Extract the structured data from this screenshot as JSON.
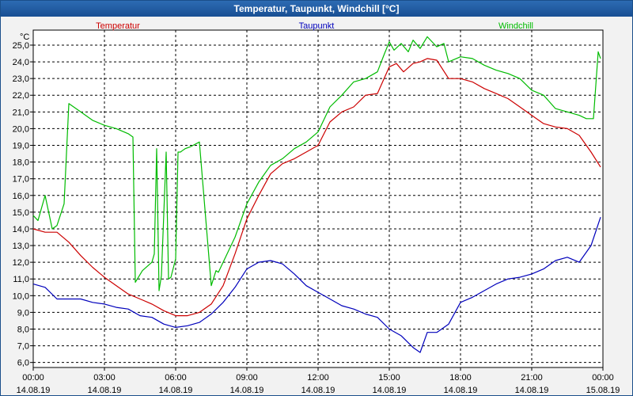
{
  "window": {
    "title": "Temperatur, Taupunkt, Windchill [°C]"
  },
  "chart_data": {
    "type": "line",
    "title": "Temperatur, Taupunkt, Windchill [°C]",
    "ylabel": "°C",
    "xlabel": "",
    "ylim": [
      5.7,
      25.9
    ],
    "xlim": [
      0,
      24
    ],
    "grid": true,
    "yticks": [
      "6,0",
      "7,0",
      "8,0",
      "9,0",
      "10,0",
      "11,0",
      "12,0",
      "13,0",
      "14,0",
      "15,0",
      "16,0",
      "17,0",
      "18,0",
      "19,0",
      "20,0",
      "21,0",
      "22,0",
      "23,0",
      "24,0",
      "25,0"
    ],
    "xticks": [
      {
        "time": "00:00",
        "date": "14.08.19"
      },
      {
        "time": "03:00",
        "date": "14.08.19"
      },
      {
        "time": "06:00",
        "date": "14.08.19"
      },
      {
        "time": "09:00",
        "date": "14.08.19"
      },
      {
        "time": "12:00",
        "date": "14.08.19"
      },
      {
        "time": "15:00",
        "date": "14.08.19"
      },
      {
        "time": "18:00",
        "date": "14.08.19"
      },
      {
        "time": "21:00",
        "date": "14.08.19"
      },
      {
        "time": "00:00",
        "date": "15.08.19"
      }
    ],
    "series": [
      {
        "name": "Temperatur",
        "color": "#cc0000",
        "x": [
          0,
          0.5,
          1,
          1.5,
          2,
          2.5,
          3,
          3.5,
          4,
          4.5,
          5,
          5.5,
          6,
          6.5,
          7,
          7.5,
          8,
          8.5,
          9,
          9.5,
          10,
          10.5,
          11,
          11.5,
          12,
          12.5,
          13,
          13.5,
          14,
          14.5,
          15,
          15.3,
          15.6,
          16,
          16.3,
          16.6,
          17,
          17.5,
          18,
          18.5,
          19,
          19.5,
          20,
          20.5,
          21,
          21.5,
          22,
          22.5,
          23,
          23.5,
          23.9
        ],
        "values": [
          14.0,
          13.8,
          13.8,
          13.2,
          12.4,
          11.7,
          11.1,
          10.6,
          10.1,
          9.8,
          9.5,
          9.1,
          8.8,
          8.8,
          9.0,
          9.5,
          10.6,
          12.5,
          14.6,
          16.0,
          17.3,
          17.9,
          18.2,
          18.6,
          19.0,
          20.4,
          21.0,
          21.3,
          22.0,
          22.1,
          23.7,
          23.9,
          23.4,
          23.9,
          24.0,
          24.2,
          24.1,
          23.0,
          23.0,
          22.8,
          22.4,
          22.1,
          21.8,
          21.3,
          20.8,
          20.3,
          20.1,
          20.0,
          19.6,
          18.6,
          17.7
        ]
      },
      {
        "name": "Taupunkt",
        "color": "#0000bb",
        "x": [
          0,
          0.5,
          1,
          1.5,
          2,
          2.5,
          3,
          3.5,
          4,
          4.5,
          5,
          5.5,
          6,
          6.5,
          7,
          7.5,
          8,
          8.5,
          9,
          9.5,
          10,
          10.5,
          11,
          11.5,
          12,
          12.5,
          13,
          13.5,
          14,
          14.5,
          15,
          15.5,
          16,
          16.3,
          16.6,
          17,
          17.5,
          18,
          18.5,
          19,
          19.5,
          20,
          20.5,
          21,
          21.5,
          22,
          22.5,
          23,
          23.5,
          23.9
        ],
        "values": [
          10.7,
          10.5,
          9.8,
          9.8,
          9.8,
          9.6,
          9.5,
          9.3,
          9.2,
          8.8,
          8.7,
          8.3,
          8.1,
          8.2,
          8.4,
          8.9,
          9.6,
          10.5,
          11.6,
          12.0,
          12.1,
          11.9,
          11.3,
          10.6,
          10.2,
          9.8,
          9.4,
          9.2,
          8.9,
          8.7,
          8.0,
          7.6,
          6.9,
          6.6,
          7.8,
          7.8,
          8.3,
          9.6,
          9.9,
          10.3,
          10.7,
          11.0,
          11.1,
          11.3,
          11.6,
          12.1,
          12.3,
          12.0,
          13.0,
          14.7
        ]
      },
      {
        "name": "Windchill",
        "color": "#00bb00",
        "x": [
          0,
          0.2,
          0.5,
          0.8,
          1,
          1.3,
          1.5,
          2,
          2.5,
          3,
          3.5,
          4,
          4.2,
          4.3,
          4.6,
          5,
          5.1,
          5.2,
          5.3,
          5.4,
          5.6,
          5.7,
          5.8,
          6,
          6.1,
          6.2,
          6.3,
          6.4,
          6.6,
          7,
          7.5,
          7.7,
          7.8,
          8,
          8.5,
          9,
          9.5,
          10,
          10.5,
          11,
          11.5,
          12,
          12.5,
          13,
          13.5,
          14,
          14.5,
          14.8,
          15,
          15.2,
          15.5,
          15.8,
          16,
          16.3,
          16.6,
          17,
          17.3,
          17.5,
          18,
          18.5,
          19,
          19.5,
          20,
          20.5,
          21,
          21.5,
          22,
          22.5,
          23,
          23.3,
          23.6,
          23.8,
          23.9
        ],
        "values": [
          14.8,
          14.5,
          16.0,
          14.0,
          14.2,
          15.5,
          21.5,
          21.0,
          20.5,
          20.2,
          20.0,
          19.7,
          19.5,
          10.8,
          11.5,
          12.0,
          12.5,
          18.8,
          10.3,
          11.2,
          18.6,
          11.0,
          11.1,
          12.2,
          18.6,
          18.6,
          18.7,
          18.8,
          18.9,
          19.2,
          10.6,
          11.5,
          11.4,
          12.0,
          13.5,
          15.5,
          16.8,
          17.8,
          18.2,
          18.8,
          19.2,
          19.8,
          21.3,
          22.0,
          22.8,
          23.0,
          23.4,
          24.5,
          25.2,
          24.7,
          25.1,
          24.6,
          25.3,
          24.8,
          25.5,
          24.9,
          25.1,
          24.0,
          24.3,
          24.2,
          23.8,
          23.5,
          23.3,
          23.0,
          22.3,
          22.0,
          21.2,
          21.0,
          20.8,
          20.6,
          20.6,
          24.6,
          24.2
        ]
      }
    ]
  }
}
